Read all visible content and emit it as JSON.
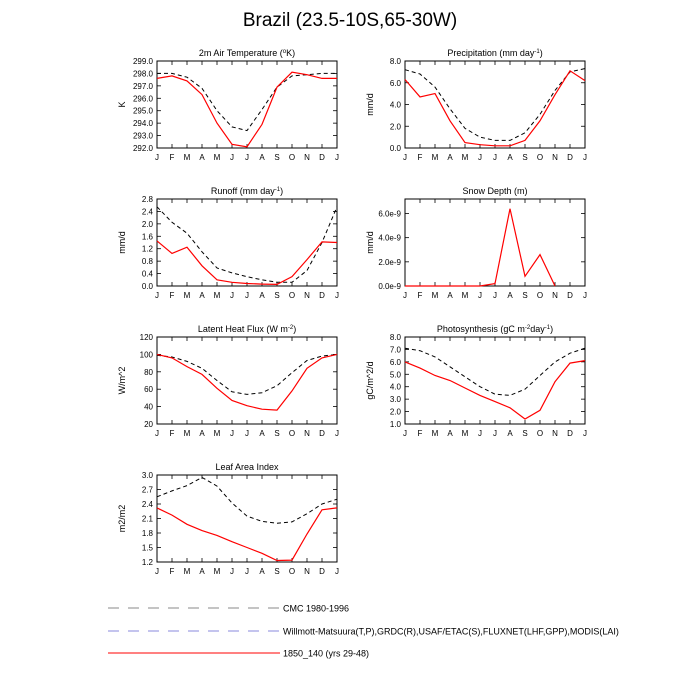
{
  "title": "Brazil (23.5-10S,65-30W)",
  "months": [
    "J",
    "F",
    "M",
    "A",
    "M",
    "J",
    "J",
    "A",
    "S",
    "O",
    "N",
    "D",
    "J"
  ],
  "colors": {
    "cmc": "#000000",
    "obs": "#6666cc",
    "model": "#ff0000"
  },
  "legend": [
    {
      "label": "CMC 1980-1996",
      "style": "dashed",
      "color": "#888888"
    },
    {
      "label": "Willmott-Matsuura(T,P),GRDC(R),USAF/ETAC(S),FLUXNET(LHF,GPP),MODIS(LAI)",
      "style": "dashed",
      "color": "#8888dd"
    },
    {
      "label": "1850_140 (yrs 29-48)",
      "style": "solid",
      "color": "#ff0000"
    }
  ],
  "chart_data": [
    {
      "type": "line",
      "title": "2m Air Temperature (°K)",
      "ylabel": "K",
      "ylim": [
        292.0,
        299.0
      ],
      "yticks": [
        "292.0",
        "293.0",
        "294.0",
        "295.0",
        "296.0",
        "297.0",
        "298.0",
        "299.0"
      ],
      "series": [
        {
          "key": "cmc",
          "values": [
            298.0,
            298.0,
            297.7,
            296.8,
            295.0,
            293.7,
            293.4,
            295.1,
            296.9,
            297.8,
            297.9,
            298.0,
            298.0
          ]
        },
        {
          "key": "model",
          "values": [
            297.6,
            297.8,
            297.4,
            296.3,
            294.0,
            292.3,
            292.1,
            293.9,
            296.9,
            298.1,
            297.9,
            297.6,
            297.6
          ]
        }
      ]
    },
    {
      "type": "line",
      "title": "Precipitation (mm day-1)",
      "ylabel": "mm/d",
      "ylim": [
        0.0,
        8.0
      ],
      "yticks": [
        "0.0",
        "2.0",
        "4.0",
        "6.0",
        "8.0"
      ],
      "series": [
        {
          "key": "cmc",
          "values": [
            7.2,
            6.8,
            5.6,
            3.6,
            1.8,
            1.0,
            0.7,
            0.7,
            1.4,
            3.1,
            5.3,
            7.0,
            7.3
          ]
        },
        {
          "key": "model",
          "values": [
            6.3,
            4.7,
            5.0,
            2.5,
            0.5,
            0.3,
            0.2,
            0.2,
            0.7,
            2.5,
            4.9,
            7.1,
            6.2
          ]
        }
      ]
    },
    {
      "type": "line",
      "title": "Runoff (mm day-1)",
      "ylabel": "mm/d",
      "ylim": [
        0.0,
        2.8
      ],
      "yticks": [
        "0.0",
        "0.4",
        "0.8",
        "1.2",
        "1.6",
        "2.0",
        "2.4",
        "2.8"
      ],
      "series": [
        {
          "key": "cmc",
          "values": [
            2.55,
            2.05,
            1.7,
            1.1,
            0.58,
            0.42,
            0.3,
            0.2,
            0.12,
            0.12,
            0.5,
            1.4,
            2.55
          ]
        },
        {
          "key": "model",
          "values": [
            1.45,
            1.05,
            1.25,
            0.65,
            0.2,
            0.12,
            0.08,
            0.06,
            0.05,
            0.3,
            0.85,
            1.42,
            1.4
          ]
        }
      ]
    },
    {
      "type": "line",
      "title": "Snow Depth (m)",
      "ylabel": "mm/d",
      "ylim": [
        0.0,
        7.2e-09
      ],
      "yticks": [
        "0.0e-9",
        "2.0e-9",
        "4.0e-9",
        "6.0e-9"
      ],
      "ytickvals": [
        0,
        2e-09,
        4e-09,
        6e-09
      ],
      "series": [
        {
          "key": "model",
          "values": [
            0,
            0,
            0,
            0,
            0,
            0,
            2e-10,
            6.4e-09,
            8e-10,
            2.6e-09,
            0,
            null,
            null
          ]
        }
      ]
    },
    {
      "type": "line",
      "title": "Latent Heat Flux (W m-2)",
      "ylabel": "W/m^2",
      "ylim": [
        20,
        120
      ],
      "yticks": [
        "20",
        "40",
        "60",
        "80",
        "100",
        "120"
      ],
      "series": [
        {
          "key": "cmc",
          "values": [
            99,
            97,
            92,
            84,
            70,
            57,
            54,
            56,
            64,
            79,
            93,
            98,
            100
          ]
        },
        {
          "key": "model",
          "values": [
            100,
            96,
            86,
            77,
            61,
            47,
            41,
            37,
            36,
            58,
            84,
            96,
            100
          ]
        }
      ]
    },
    {
      "type": "line",
      "title": "Photosynthesis (gC m-2day-1)",
      "ylabel": "gC/m^2/d",
      "ylim": [
        1.0,
        8.0
      ],
      "yticks": [
        "1.0",
        "2.0",
        "3.0",
        "4.0",
        "5.0",
        "6.0",
        "7.0",
        "8.0"
      ],
      "series": [
        {
          "key": "cmc",
          "values": [
            7.1,
            6.9,
            6.4,
            5.6,
            4.8,
            4.0,
            3.4,
            3.3,
            3.8,
            4.9,
            6.0,
            6.7,
            7.1
          ]
        },
        {
          "key": "model",
          "values": [
            6.0,
            5.5,
            4.9,
            4.5,
            3.9,
            3.3,
            2.8,
            2.3,
            1.4,
            2.1,
            4.4,
            5.9,
            6.1
          ]
        }
      ]
    },
    {
      "type": "line",
      "title": "Leaf Area Index",
      "ylabel": "m2/m2",
      "ylim": [
        1.2,
        3.0
      ],
      "yticks": [
        "1.2",
        "1.5",
        "1.8",
        "2.1",
        "2.4",
        "2.7",
        "3.0"
      ],
      "series": [
        {
          "key": "cmc",
          "values": [
            2.55,
            2.67,
            2.78,
            2.95,
            2.77,
            2.42,
            2.15,
            2.04,
            2.0,
            2.03,
            2.2,
            2.4,
            2.5
          ]
        },
        {
          "key": "model",
          "values": [
            2.32,
            2.17,
            1.98,
            1.85,
            1.75,
            1.62,
            1.5,
            1.38,
            1.23,
            1.24,
            1.78,
            2.28,
            2.32
          ]
        }
      ]
    }
  ]
}
